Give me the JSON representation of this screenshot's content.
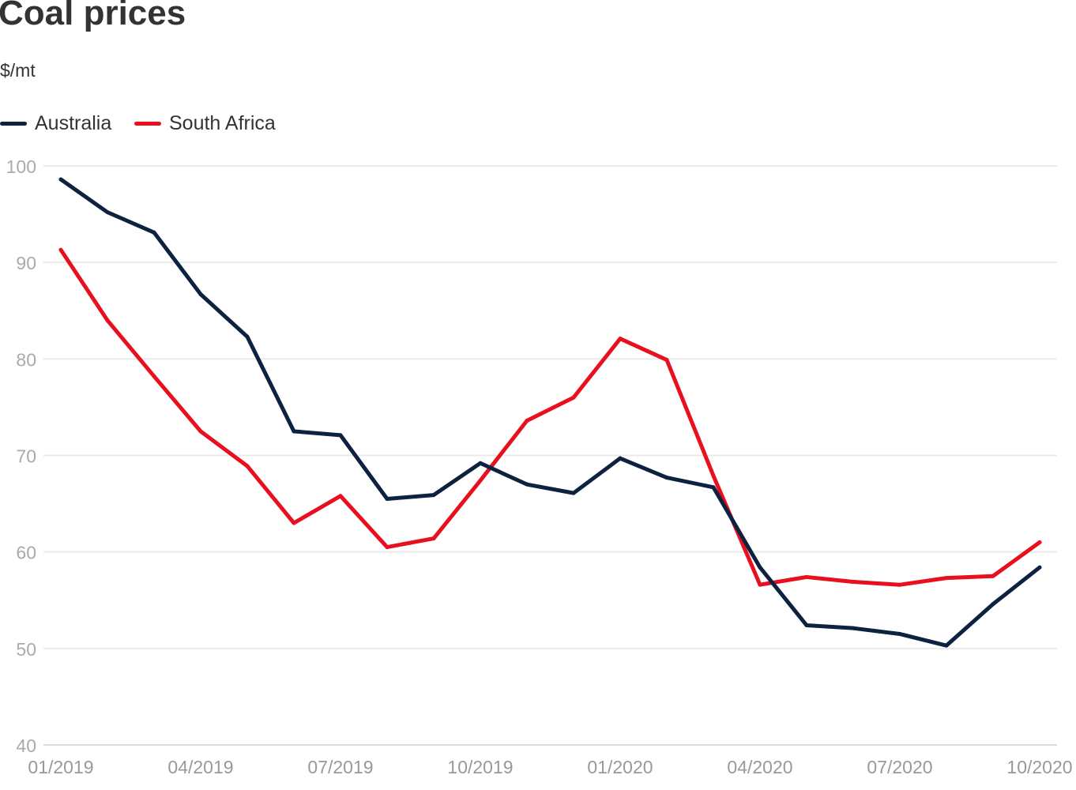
{
  "chart_data": {
    "type": "line",
    "title": "Coal prices",
    "ylabel": "$/mt",
    "xlabel": "",
    "ylim": [
      40,
      100
    ],
    "yticks": [
      40,
      50,
      60,
      70,
      80,
      90,
      100
    ],
    "grid": true,
    "legend_placement": "top-left",
    "x": [
      "01/2019",
      "02/2019",
      "03/2019",
      "04/2019",
      "05/2019",
      "06/2019",
      "07/2019",
      "08/2019",
      "09/2019",
      "10/2019",
      "11/2019",
      "12/2019",
      "01/2020",
      "02/2020",
      "03/2020",
      "04/2020",
      "05/2020",
      "06/2020",
      "07/2020",
      "08/2020",
      "09/2020",
      "10/2020"
    ],
    "xtick_labels": [
      "01/2019",
      "04/2019",
      "07/2019",
      "10/2019",
      "01/2020",
      "04/2020",
      "07/2020",
      "10/2020"
    ],
    "series": [
      {
        "name": "Australia",
        "color": "#0d2240",
        "values": [
          98.6,
          95.2,
          93.1,
          86.7,
          82.3,
          72.5,
          72.1,
          65.5,
          65.9,
          69.2,
          67.0,
          66.1,
          69.7,
          67.7,
          66.7,
          58.4,
          52.4,
          52.1,
          51.5,
          50.3,
          54.6,
          58.4
        ]
      },
      {
        "name": "South Africa",
        "color": "#e8101e",
        "values": [
          91.3,
          84.0,
          78.2,
          72.5,
          68.9,
          63.0,
          65.8,
          60.5,
          61.4,
          67.4,
          73.6,
          76.0,
          82.1,
          79.9,
          67.9,
          56.6,
          57.4,
          56.9,
          56.6,
          57.3,
          57.5,
          61.0
        ]
      }
    ]
  }
}
